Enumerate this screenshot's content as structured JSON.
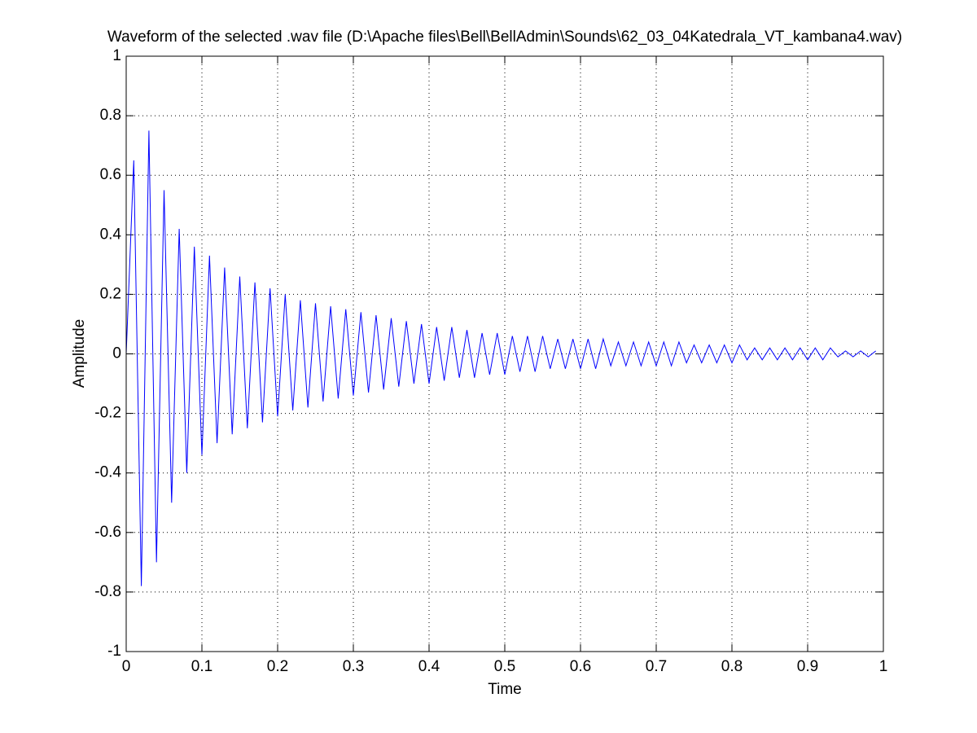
{
  "chart_data": {
    "type": "line",
    "title": "Waveform of the selected .wav file (D:\\Apache files\\Bell\\BellAdmin\\Sounds\\62_03_04Katedrala_VT_kambana4.wav)",
    "x_label": "Time",
    "y_label": "Amplitude",
    "color": "#0000ff",
    "grid": true,
    "xlim": [
      0,
      1
    ],
    "ylim": [
      -1,
      1
    ],
    "xticks": [
      0,
      0.1,
      0.2,
      0.3,
      0.4,
      0.5,
      0.6,
      0.7,
      0.8,
      0.9,
      1
    ],
    "yticks": [
      -1,
      -0.8,
      -0.6,
      -0.4,
      -0.2,
      0,
      0.2,
      0.4,
      0.6,
      0.8,
      1
    ],
    "x": [
      0,
      0.01,
      0.02,
      0.03,
      0.04,
      0.05,
      0.06,
      0.07,
      0.08,
      0.09,
      0.1,
      0.11,
      0.12,
      0.13,
      0.14,
      0.15,
      0.16,
      0.17,
      0.18,
      0.19,
      0.2,
      0.21,
      0.22,
      0.23,
      0.24,
      0.25,
      0.26,
      0.27,
      0.28,
      0.29,
      0.3,
      0.31,
      0.32,
      0.33,
      0.34,
      0.35,
      0.36,
      0.37,
      0.38,
      0.39,
      0.4,
      0.41,
      0.42,
      0.43,
      0.44,
      0.45,
      0.46,
      0.47,
      0.48,
      0.49,
      0.5,
      0.51,
      0.52,
      0.53,
      0.54,
      0.55,
      0.56,
      0.57,
      0.58,
      0.59,
      0.6,
      0.61,
      0.62,
      0.63,
      0.64,
      0.65,
      0.66,
      0.67,
      0.68,
      0.69,
      0.7,
      0.71,
      0.72,
      0.73,
      0.74,
      0.75,
      0.76,
      0.77,
      0.78,
      0.79,
      0.8,
      0.81,
      0.82,
      0.83,
      0.84,
      0.85,
      0.86,
      0.87,
      0.88,
      0.89,
      0.9,
      0.91,
      0.92,
      0.93,
      0.94,
      0.95,
      0.96,
      0.97,
      0.98,
      0.99
    ],
    "values": [
      0,
      0.65,
      -0.78,
      0.75,
      -0.7,
      0.55,
      -0.5,
      0.42,
      -0.4,
      0.36,
      -0.34,
      0.33,
      -0.3,
      0.29,
      -0.27,
      0.26,
      -0.25,
      0.24,
      -0.23,
      0.22,
      -0.21,
      0.2,
      -0.19,
      0.18,
      -0.18,
      0.17,
      -0.16,
      0.16,
      -0.15,
      0.15,
      -0.14,
      0.14,
      -0.13,
      0.13,
      -0.12,
      0.12,
      -0.11,
      0.11,
      -0.1,
      0.1,
      -0.1,
      0.09,
      -0.09,
      0.09,
      -0.08,
      0.08,
      -0.08,
      0.07,
      -0.07,
      0.07,
      -0.07,
      0.06,
      -0.06,
      0.06,
      -0.06,
      0.06,
      -0.05,
      0.05,
      -0.05,
      0.05,
      -0.05,
      0.05,
      -0.05,
      0.05,
      -0.04,
      0.04,
      -0.04,
      0.04,
      -0.04,
      0.04,
      -0.04,
      0.04,
      -0.04,
      0.04,
      -0.03,
      0.03,
      -0.03,
      0.03,
      -0.03,
      0.03,
      -0.03,
      0.03,
      -0.02,
      0.02,
      -0.02,
      0.02,
      -0.02,
      0.02,
      -0.02,
      0.02,
      -0.02,
      0.02,
      -0.02,
      0.02,
      -0.01,
      0.01,
      -0.01,
      0.01,
      -0.01,
      0.01
    ]
  }
}
